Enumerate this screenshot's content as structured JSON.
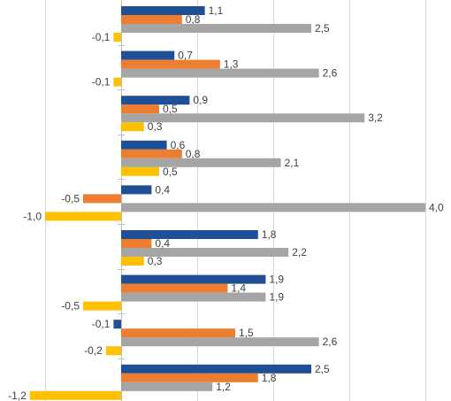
{
  "chart_data": {
    "type": "bar",
    "orientation": "horizontal",
    "grid": true,
    "xlim": [
      -1.6,
      4.3
    ],
    "series_colors": [
      "#1f5096",
      "#ed7d31",
      "#a5a5a5",
      "#ffc000"
    ],
    "groups": [
      {
        "values": [
          1.1,
          0.8,
          2.5,
          -0.1
        ],
        "labels": [
          "1,1",
          "0,8",
          "2,5",
          "-0,1"
        ]
      },
      {
        "values": [
          0.7,
          1.3,
          2.6,
          -0.1
        ],
        "labels": [
          "0,7",
          "1,3",
          "2,6",
          "-0,1"
        ]
      },
      {
        "values": [
          0.9,
          0.5,
          3.2,
          0.3
        ],
        "labels": [
          "0,9",
          "0,5",
          "3,2",
          "0,3"
        ]
      },
      {
        "values": [
          0.6,
          0.8,
          2.1,
          0.5
        ],
        "labels": [
          "0,6",
          "0,8",
          "2,1",
          "0,5"
        ]
      },
      {
        "values": [
          0.4,
          -0.5,
          4.0,
          -1.0
        ],
        "labels": [
          "0,4",
          "-0,5",
          "4,0",
          "-1,0"
        ]
      },
      {
        "values": [
          1.8,
          0.4,
          2.2,
          0.3
        ],
        "labels": [
          "1,8",
          "0,4",
          "2,2",
          "0,3"
        ]
      },
      {
        "values": [
          1.9,
          1.4,
          1.9,
          -0.5
        ],
        "labels": [
          "1,9",
          "1,4",
          "1,9",
          "-0,5"
        ]
      },
      {
        "values": [
          -0.1,
          1.5,
          2.6,
          -0.2
        ],
        "labels": [
          "-0,1",
          "1,5",
          "2,6",
          "-0,2"
        ]
      },
      {
        "values": [
          2.5,
          1.8,
          1.2,
          -1.2
        ],
        "labels": [
          "2,5",
          "1,8",
          "1,2",
          "-1,2"
        ]
      }
    ]
  }
}
